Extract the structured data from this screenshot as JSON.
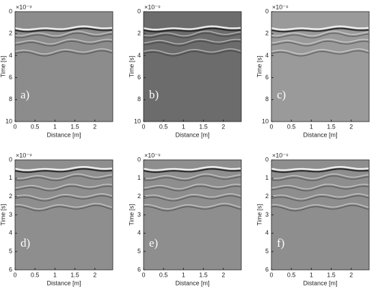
{
  "chart_data": [
    {
      "type": "image",
      "panel_label": "a)",
      "exponent": "×10⁻⁹",
      "xlabel": "Distance [m]",
      "ylabel": "Time [s]",
      "xlim": [
        0,
        2.45
      ],
      "xticks": [
        0,
        0.5,
        1,
        1.5,
        2
      ],
      "ylim": [
        0,
        10
      ],
      "yticks": [
        0,
        2,
        4,
        6,
        8,
        10
      ],
      "y_reversed": true,
      "color": "#8c8c8c"
    },
    {
      "type": "image",
      "panel_label": "b)",
      "exponent": "×10⁻⁹",
      "xlabel": "Distance [m]",
      "ylabel": "Time [s]",
      "xlim": [
        0,
        2.45
      ],
      "xticks": [
        0,
        0.5,
        1,
        1.5,
        2
      ],
      "ylim": [
        0,
        10
      ],
      "yticks": [
        0,
        2,
        4,
        6,
        8,
        10
      ],
      "y_reversed": true,
      "color": "#6c6c6c"
    },
    {
      "type": "image",
      "panel_label": "c)",
      "exponent": "×10⁻⁹",
      "xlabel": "Distance [m]",
      "ylabel": "Time [s]",
      "xlim": [
        0,
        2.45
      ],
      "xticks": [
        0,
        0.5,
        1,
        1.5,
        2
      ],
      "ylim": [
        0,
        10
      ],
      "yticks": [
        0,
        2,
        4,
        6,
        8,
        10
      ],
      "y_reversed": true,
      "color": "#9a9a9a"
    },
    {
      "type": "image",
      "panel_label": "d)",
      "exponent": "×10⁻⁹",
      "xlabel": "Distance [m]",
      "ylabel": "Time [s]",
      "xlim": [
        0,
        2.45
      ],
      "xticks": [
        0,
        0.5,
        1,
        1.5,
        2
      ],
      "ylim": [
        0,
        6
      ],
      "yticks": [
        0,
        1,
        2,
        3,
        4,
        5,
        6
      ],
      "y_reversed": true,
      "color": "#8e8e8e"
    },
    {
      "type": "image",
      "panel_label": "e)",
      "exponent": "×10⁻⁹",
      "xlabel": "Distance [m]",
      "ylabel": "Time [s]",
      "xlim": [
        0,
        2.45
      ],
      "xticks": [
        0,
        0.5,
        1,
        1.5,
        2
      ],
      "ylim": [
        0,
        6
      ],
      "yticks": [
        0,
        1,
        2,
        3,
        4,
        5,
        6
      ],
      "y_reversed": true,
      "color": "#8e8e8e"
    },
    {
      "type": "image",
      "panel_label": "f)",
      "exponent": "×10⁻⁹",
      "xlabel": "Distance [m]",
      "ylabel": "Time [s]",
      "xlim": [
        0,
        2.45
      ],
      "xticks": [
        0,
        0.5,
        1,
        1.5,
        2
      ],
      "ylim": [
        0,
        6
      ],
      "yticks": [
        0,
        1,
        2,
        3,
        4,
        5,
        6
      ],
      "y_reversed": true,
      "color": "#8e8e8e"
    }
  ]
}
